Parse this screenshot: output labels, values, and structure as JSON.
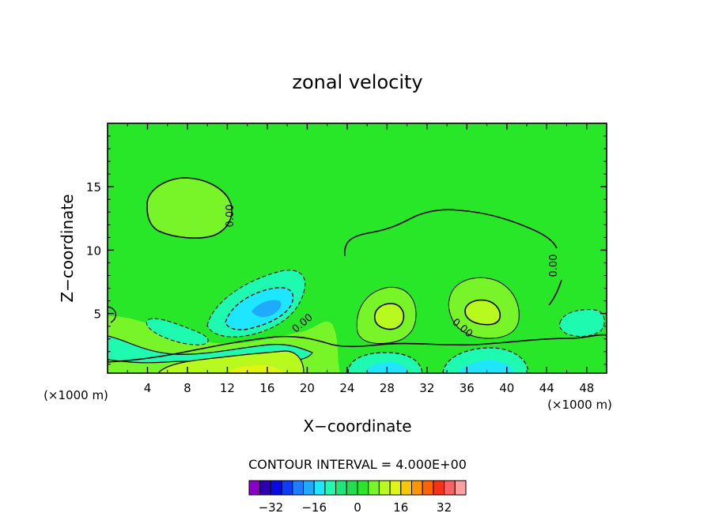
{
  "chart_data": {
    "type": "contour",
    "title": "zonal velocity",
    "xlabel": "X−coordinate",
    "ylabel": "Z−coordinate",
    "x_unit_left": "(×1000 m)",
    "x_unit_right": "(×1000 m)",
    "xlim": [
      0,
      50
    ],
    "ylim": [
      0.3,
      20
    ],
    "x_ticks": [
      4,
      8,
      12,
      16,
      20,
      24,
      28,
      32,
      36,
      40,
      44,
      48
    ],
    "y_ticks": [
      5,
      10,
      15
    ],
    "contour_interval_label": "CONTOUR INTERVAL = 4.000E+00",
    "contour_interval": 4,
    "contour_labels": [
      "0.00",
      "0.00",
      "0.00",
      "0.00"
    ],
    "background_value_range": [
      0,
      4
    ],
    "regions": [
      {
        "kind": "positive",
        "value_range": [
          4,
          8
        ],
        "x_center": 7.5,
        "z_center": 13.5,
        "description_level": "weak eastward"
      },
      {
        "kind": "zero-contour",
        "x_range": [
          22.5,
          45
        ],
        "z_max": 12.8
      },
      {
        "kind": "negative",
        "value_range": [
          -16,
          -8
        ],
        "x_center": 16,
        "z_center": 4.8
      },
      {
        "kind": "positive",
        "value_range": [
          8,
          12
        ],
        "x_center": 28,
        "z_center": 4.5
      },
      {
        "kind": "positive",
        "value_range": [
          8,
          12
        ],
        "x_center": 37.5,
        "z_center": 4.8
      },
      {
        "kind": "positive",
        "value_range": [
          16,
          20
        ],
        "x_center": 15.5,
        "z_center": 0.7
      },
      {
        "kind": "negative",
        "value_range": [
          -16,
          -12
        ],
        "x_center": 28,
        "z_center": 0.6
      },
      {
        "kind": "negative",
        "value_range": [
          -16,
          -12
        ],
        "x_center": 37,
        "z_center": 0.6
      }
    ],
    "colorbar": {
      "colors": [
        "#8a00c8",
        "#2d00b4",
        "#0a0ae6",
        "#0f3cf5",
        "#1e7dff",
        "#1eaaff",
        "#1ee6ff",
        "#1efaaf",
        "#1ee678",
        "#23dc50",
        "#28e628",
        "#78f528",
        "#b9fa1e",
        "#e1f514",
        "#f5c800",
        "#ff9600",
        "#ff6400",
        "#f53214",
        "#f56464",
        "#ffa0a0"
      ],
      "tick_labels": [
        "−32",
        "−16",
        "0",
        "16",
        "32"
      ],
      "tick_values": [
        -32,
        -16,
        0,
        16,
        32
      ]
    }
  }
}
